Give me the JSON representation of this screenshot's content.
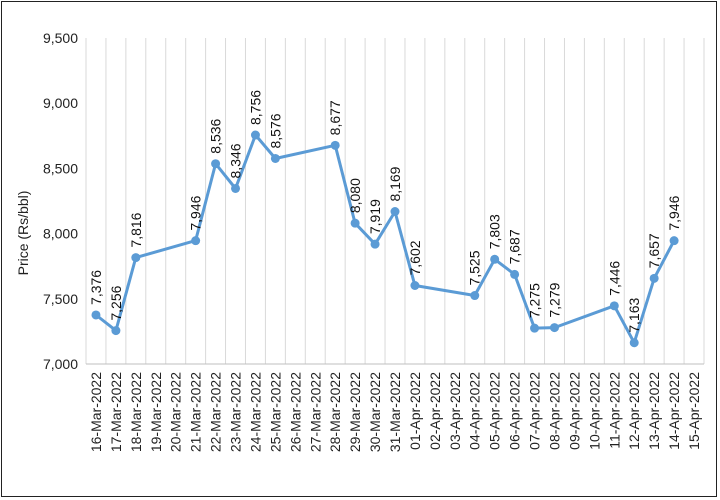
{
  "chart_data": {
    "type": "line",
    "title": "",
    "xlabel": "",
    "ylabel": "Price (Rs/bbl)",
    "ylim": [
      7000,
      9500
    ],
    "yticks": [
      7000,
      7500,
      8000,
      8500,
      9000,
      9500
    ],
    "ytick_labels": [
      "7,000",
      "7,500",
      "8,000",
      "8,500",
      "9,000",
      "9,500"
    ],
    "grid": "vertical",
    "color": "#5b9bd5",
    "categories": [
      "16-Mar-2022",
      "17-Mar-2022",
      "18-Mar-2022",
      "19-Mar-2022",
      "20-Mar-2022",
      "21-Mar-2022",
      "22-Mar-2022",
      "23-Mar-2022",
      "24-Mar-2022",
      "25-Mar-2022",
      "26-Mar-2022",
      "27-Mar-2022",
      "28-Mar-2022",
      "29-Mar-2022",
      "30-Mar-2022",
      "31-Mar-2022",
      "01-Apr-2022",
      "02-Apr-2022",
      "03-Apr-2022",
      "04-Apr-2022",
      "05-Apr-2022",
      "06-Apr-2022",
      "07-Apr-2022",
      "08-Apr-2022",
      "09-Apr-2022",
      "10-Apr-2022",
      "11-Apr-2022",
      "12-Apr-2022",
      "13-Apr-2022",
      "14-Apr-2022",
      "15-Apr-2022"
    ],
    "points": [
      {
        "x": "16-Mar-2022",
        "y": 7376,
        "label": "7,376"
      },
      {
        "x": "17-Mar-2022",
        "y": 7256,
        "label": "7,256"
      },
      {
        "x": "18-Mar-2022",
        "y": 7816,
        "label": "7,816"
      },
      {
        "x": "21-Mar-2022",
        "y": 7946,
        "label": "7,946"
      },
      {
        "x": "22-Mar-2022",
        "y": 8536,
        "label": "8,536"
      },
      {
        "x": "23-Mar-2022",
        "y": 8346,
        "label": "8,346"
      },
      {
        "x": "24-Mar-2022",
        "y": 8756,
        "label": "8,756"
      },
      {
        "x": "25-Mar-2022",
        "y": 8576,
        "label": "8,576"
      },
      {
        "x": "28-Mar-2022",
        "y": 8677,
        "label": "8,677"
      },
      {
        "x": "29-Mar-2022",
        "y": 8080,
        "label": "8,080"
      },
      {
        "x": "30-Mar-2022",
        "y": 7919,
        "label": "7,919"
      },
      {
        "x": "31-Mar-2022",
        "y": 8169,
        "label": "8,169"
      },
      {
        "x": "01-Apr-2022",
        "y": 7602,
        "label": "7,602"
      },
      {
        "x": "04-Apr-2022",
        "y": 7525,
        "label": "7,525"
      },
      {
        "x": "05-Apr-2022",
        "y": 7803,
        "label": "7,803"
      },
      {
        "x": "06-Apr-2022",
        "y": 7687,
        "label": "7,687"
      },
      {
        "x": "07-Apr-2022",
        "y": 7275,
        "label": "7,275"
      },
      {
        "x": "08-Apr-2022",
        "y": 7279,
        "label": "7,279"
      },
      {
        "x": "11-Apr-2022",
        "y": 7446,
        "label": "7,446"
      },
      {
        "x": "12-Apr-2022",
        "y": 7163,
        "label": "7,163"
      },
      {
        "x": "13-Apr-2022",
        "y": 7657,
        "label": "7,657"
      },
      {
        "x": "14-Apr-2022",
        "y": 7946,
        "label": "7,946"
      }
    ]
  }
}
